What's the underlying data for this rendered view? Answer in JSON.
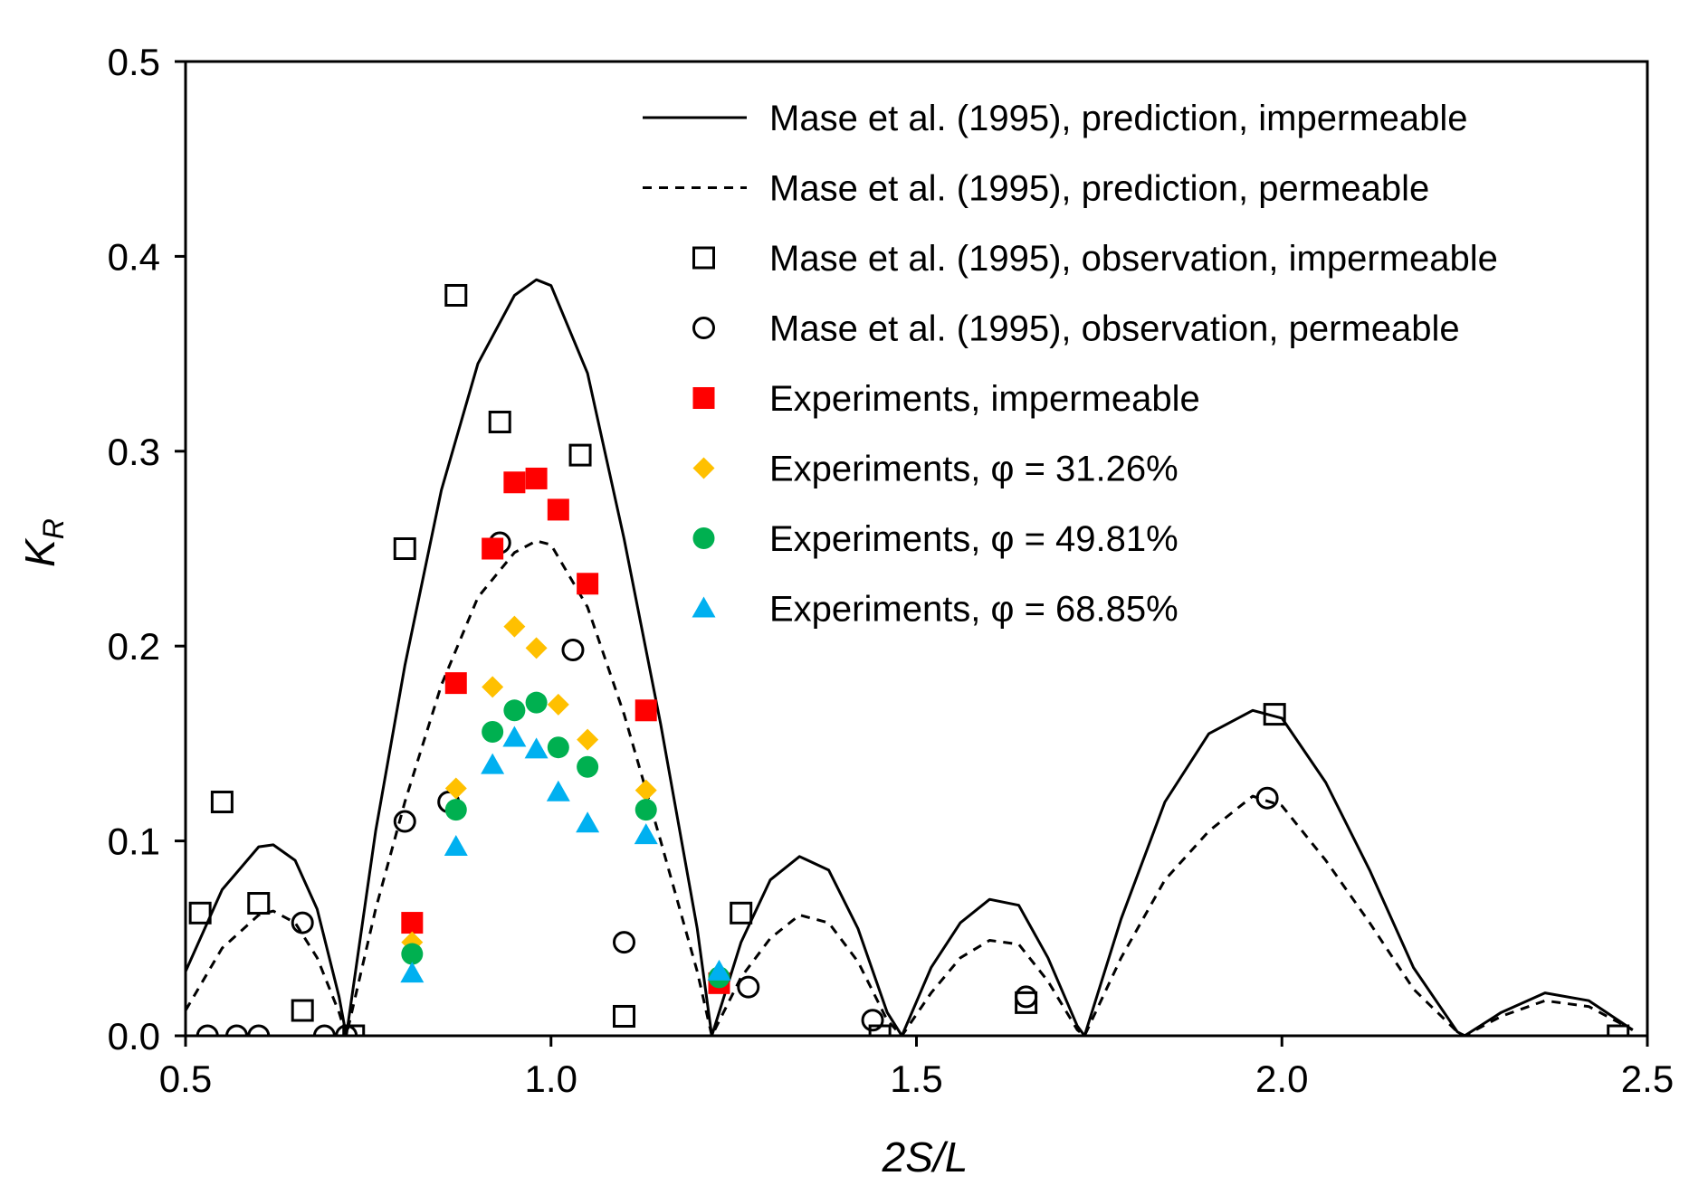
{
  "chart_data": {
    "type": "scatter",
    "title": "",
    "xlabel": "2S/L",
    "ylabel": "K_R",
    "ylabel_main": "K",
    "ylabel_sub": "R",
    "xlim": [
      0.5,
      2.5
    ],
    "ylim": [
      0.0,
      0.5
    ],
    "xticks": [
      "0.5",
      "1.0",
      "1.5",
      "2.0",
      "2.5"
    ],
    "yticks": [
      "0.0",
      "0.1",
      "0.2",
      "0.3",
      "0.4",
      "0.5"
    ],
    "grid": false,
    "legend_position": "top-right",
    "series": [
      {
        "name": "Mase et al. (1995), prediction, impermeable",
        "kind": "line",
        "style": "solid",
        "color": "#000000",
        "x": [
          0.5,
          0.55,
          0.6,
          0.62,
          0.65,
          0.68,
          0.71,
          0.72,
          0.76,
          0.8,
          0.85,
          0.9,
          0.95,
          0.98,
          1.0,
          1.05,
          1.1,
          1.15,
          1.2,
          1.22,
          1.26,
          1.3,
          1.34,
          1.38,
          1.42,
          1.46,
          1.48,
          1.52,
          1.56,
          1.6,
          1.64,
          1.68,
          1.72,
          1.73,
          1.78,
          1.84,
          1.9,
          1.96,
          2.0,
          2.06,
          2.12,
          2.18,
          2.24,
          2.25,
          2.3,
          2.36,
          2.42,
          2.48
        ],
        "y": [
          0.033,
          0.075,
          0.097,
          0.098,
          0.09,
          0.065,
          0.02,
          0.0,
          0.105,
          0.19,
          0.28,
          0.345,
          0.38,
          0.388,
          0.385,
          0.34,
          0.255,
          0.16,
          0.055,
          0.0,
          0.048,
          0.08,
          0.092,
          0.085,
          0.055,
          0.012,
          0.0,
          0.035,
          0.058,
          0.07,
          0.067,
          0.04,
          0.005,
          0.0,
          0.06,
          0.12,
          0.155,
          0.167,
          0.163,
          0.13,
          0.085,
          0.035,
          0.002,
          0.0,
          0.012,
          0.022,
          0.018,
          0.003
        ]
      },
      {
        "name": "Mase et al. (1995), prediction, permeable",
        "kind": "line",
        "style": "dashed",
        "color": "#000000",
        "x": [
          0.5,
          0.55,
          0.6,
          0.62,
          0.65,
          0.68,
          0.71,
          0.72,
          0.76,
          0.8,
          0.85,
          0.9,
          0.95,
          0.98,
          1.0,
          1.05,
          1.1,
          1.15,
          1.2,
          1.22,
          1.26,
          1.3,
          1.34,
          1.38,
          1.42,
          1.46,
          1.48,
          1.52,
          1.56,
          1.6,
          1.64,
          1.68,
          1.72,
          1.73,
          1.78,
          1.84,
          1.9,
          1.96,
          2.0,
          2.06,
          2.12,
          2.18,
          2.24,
          2.25,
          2.3,
          2.36,
          2.42,
          2.48
        ],
        "y": [
          0.013,
          0.045,
          0.062,
          0.064,
          0.058,
          0.04,
          0.012,
          0.0,
          0.065,
          0.12,
          0.18,
          0.225,
          0.248,
          0.254,
          0.252,
          0.22,
          0.165,
          0.1,
          0.033,
          0.0,
          0.03,
          0.05,
          0.062,
          0.058,
          0.038,
          0.008,
          0.0,
          0.022,
          0.04,
          0.049,
          0.047,
          0.028,
          0.003,
          0.0,
          0.04,
          0.08,
          0.105,
          0.123,
          0.118,
          0.09,
          0.058,
          0.024,
          0.002,
          0.0,
          0.01,
          0.018,
          0.015,
          0.003
        ]
      },
      {
        "name": "Mase et al. (1995), observation, impermeable",
        "kind": "scatter",
        "marker": "square-open",
        "color": "#000000",
        "x": [
          0.52,
          0.55,
          0.6,
          0.66,
          0.73,
          0.8,
          0.87,
          0.93,
          1.04,
          1.1,
          1.26,
          1.45,
          1.65,
          1.99,
          2.46
        ],
        "y": [
          0.063,
          0.12,
          0.068,
          0.013,
          0.0,
          0.25,
          0.38,
          0.315,
          0.298,
          0.01,
          0.063,
          0.0,
          0.017,
          0.165,
          0.0
        ]
      },
      {
        "name": "Mase et al. (1995), observation, permeable",
        "kind": "scatter",
        "marker": "circle-open",
        "color": "#000000",
        "x": [
          0.53,
          0.57,
          0.6,
          0.66,
          0.69,
          0.72,
          0.8,
          0.86,
          0.93,
          1.03,
          1.1,
          1.27,
          1.44,
          1.65,
          1.98
        ],
        "y": [
          0.0,
          0.0,
          0.0,
          0.058,
          0.0,
          0.0,
          0.11,
          0.12,
          0.253,
          0.198,
          0.048,
          0.025,
          0.008,
          0.02,
          0.122
        ]
      },
      {
        "name": "Experiments, impermeable",
        "kind": "scatter",
        "marker": "square-filled",
        "color": "#ff0000",
        "x": [
          0.81,
          0.87,
          0.92,
          0.95,
          0.98,
          1.01,
          1.05,
          1.13,
          1.23
        ],
        "y": [
          0.058,
          0.181,
          0.25,
          0.284,
          0.286,
          0.27,
          0.232,
          0.167,
          0.027
        ]
      },
      {
        "name": "Experiments, φ = 31.26%",
        "kind": "scatter",
        "marker": "diamond-filled",
        "color": "#ffc000",
        "x": [
          0.81,
          0.87,
          0.92,
          0.95,
          0.98,
          1.01,
          1.05,
          1.13,
          1.23
        ],
        "y": [
          0.048,
          0.127,
          0.179,
          0.21,
          0.199,
          0.17,
          0.152,
          0.126,
          0.031
        ]
      },
      {
        "name": "Experiments, φ = 49.81%",
        "kind": "scatter",
        "marker": "circle-filled",
        "color": "#00b050",
        "x": [
          0.81,
          0.87,
          0.92,
          0.95,
          0.98,
          1.01,
          1.05,
          1.13,
          1.23
        ],
        "y": [
          0.042,
          0.116,
          0.156,
          0.167,
          0.171,
          0.148,
          0.138,
          0.116,
          0.03
        ]
      },
      {
        "name": "Experiments, φ = 68.85%",
        "kind": "scatter",
        "marker": "triangle-filled",
        "color": "#00b0f0",
        "x": [
          0.81,
          0.87,
          0.92,
          0.95,
          0.98,
          1.01,
          1.05,
          1.13,
          1.23
        ],
        "y": [
          0.032,
          0.097,
          0.139,
          0.153,
          0.147,
          0.125,
          0.109,
          0.103,
          0.033
        ]
      }
    ]
  }
}
